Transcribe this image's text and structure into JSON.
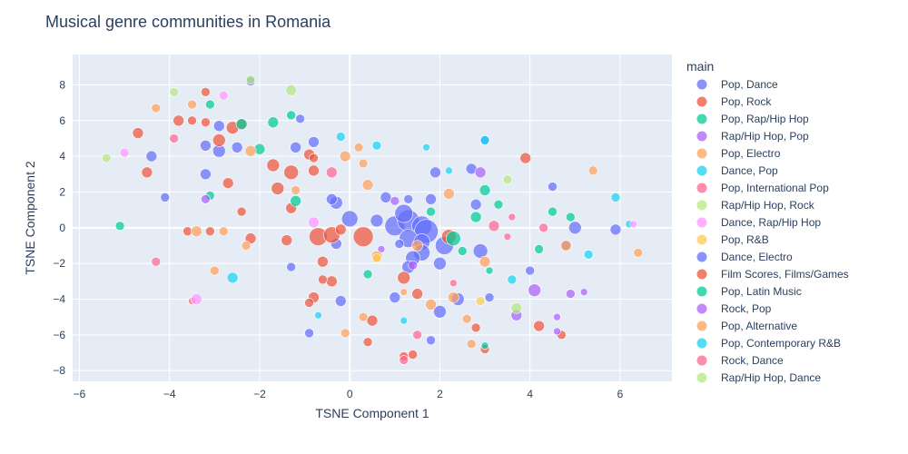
{
  "chart_data": {
    "type": "scatter",
    "title": "Musical genre communities in Romania",
    "xlabel": "TSNE Component 1",
    "ylabel": "TSNE Component 2",
    "xlim": [
      -6.15,
      7.15
    ],
    "ylim": [
      -8.6,
      9.7
    ],
    "xticks": [
      -6,
      -4,
      -2,
      0,
      2,
      4,
      6
    ],
    "yticks": [
      -8,
      -6,
      -4,
      -2,
      0,
      2,
      4,
      6,
      8
    ],
    "grid": true,
    "legend_title": "main",
    "legend_position": "right",
    "series": [
      {
        "name": "Pop, Dance",
        "color": "#636efa",
        "points": [
          [
            -2.9,
            5.7,
            6
          ],
          [
            -3.2,
            4.6,
            6
          ],
          [
            -2.9,
            4.3,
            7
          ],
          [
            -2.5,
            4.5,
            6
          ],
          [
            -1.2,
            4.5,
            6
          ],
          [
            -0.8,
            4.8,
            6
          ],
          [
            -3.2,
            3.0,
            6
          ],
          [
            -4.4,
            4.0,
            6
          ],
          [
            -4.1,
            1.7,
            5
          ],
          [
            -0.3,
            1.4,
            7
          ],
          [
            -0.4,
            1.6,
            6
          ],
          [
            0.8,
            1.7,
            6
          ],
          [
            0.0,
            0.5,
            9
          ],
          [
            0.6,
            0.4,
            7
          ],
          [
            1.0,
            0.1,
            11
          ],
          [
            1.3,
            0.4,
            12
          ],
          [
            1.2,
            0.8,
            10
          ],
          [
            1.6,
            0.1,
            11
          ],
          [
            1.7,
            -0.2,
            13
          ],
          [
            1.3,
            -0.6,
            10
          ],
          [
            1.6,
            -0.8,
            9
          ],
          [
            1.6,
            -1.4,
            9
          ],
          [
            2.1,
            -1.0,
            10
          ],
          [
            1.4,
            -1.7,
            8
          ],
          [
            2.0,
            -2.0,
            7
          ],
          [
            1.8,
            1.6,
            6
          ],
          [
            1.9,
            3.1,
            6
          ],
          [
            2.7,
            3.3,
            6
          ],
          [
            2.8,
            1.3,
            6
          ],
          [
            2.9,
            -1.3,
            8
          ],
          [
            2.4,
            -4.0,
            7
          ],
          [
            2.0,
            -4.7,
            7
          ],
          [
            1.3,
            -2.2,
            7
          ],
          [
            1.0,
            -3.9,
            6
          ],
          [
            -0.2,
            -4.1,
            6
          ],
          [
            -0.3,
            -0.9,
            6
          ],
          [
            -1.3,
            -2.2,
            5
          ],
          [
            3.0,
            4.9,
            5
          ],
          [
            4.5,
            2.3,
            5
          ],
          [
            4.0,
            -2.4,
            5
          ],
          [
            4.8,
            -1.0,
            5
          ],
          [
            5.0,
            0.0,
            7
          ],
          [
            5.9,
            -0.1,
            6
          ],
          [
            -1.1,
            6.1,
            5
          ],
          [
            -2.2,
            8.2,
            5
          ],
          [
            1.3,
            1.6,
            5
          ],
          [
            1.8,
            -6.3,
            5
          ],
          [
            -0.9,
            -5.9,
            5
          ],
          [
            3.1,
            -3.9,
            5
          ],
          [
            1.1,
            -0.9,
            5
          ]
        ]
      },
      {
        "name": "Pop, Rock",
        "color": "#ef553b",
        "points": [
          [
            -3.8,
            6.0,
            6
          ],
          [
            -4.7,
            5.3,
            6
          ],
          [
            -3.5,
            6.0,
            5
          ],
          [
            -2.9,
            4.9,
            7
          ],
          [
            -2.6,
            5.6,
            7
          ],
          [
            -2.4,
            5.8,
            6
          ],
          [
            -3.2,
            7.6,
            5
          ],
          [
            -1.7,
            3.5,
            7
          ],
          [
            -1.3,
            3.1,
            8
          ],
          [
            -1.6,
            2.2,
            7
          ],
          [
            -0.9,
            4.1,
            6
          ],
          [
            -0.8,
            3.9,
            5
          ],
          [
            -0.8,
            3.2,
            6
          ],
          [
            -1.3,
            1.1,
            6
          ],
          [
            -2.7,
            2.5,
            6
          ],
          [
            -4.5,
            3.1,
            6
          ],
          [
            -2.2,
            -0.6,
            6
          ],
          [
            -1.4,
            -0.7,
            6
          ],
          [
            -0.7,
            -0.5,
            10
          ],
          [
            -0.4,
            -0.4,
            9
          ],
          [
            -0.2,
            -0.1,
            6
          ],
          [
            0.3,
            -0.5,
            11
          ],
          [
            -0.6,
            -1.9,
            6
          ],
          [
            -0.4,
            -3.0,
            6
          ],
          [
            -0.8,
            -3.9,
            6
          ],
          [
            -0.9,
            -4.2,
            5
          ],
          [
            -0.6,
            -2.9,
            5
          ],
          [
            0.5,
            -5.2,
            6
          ],
          [
            0.4,
            -6.4,
            5
          ],
          [
            1.2,
            -2.8,
            7
          ],
          [
            1.5,
            -3.7,
            6
          ],
          [
            1.2,
            -7.2,
            5
          ],
          [
            1.4,
            -7.1,
            5
          ],
          [
            3.0,
            -6.8,
            5
          ],
          [
            3.9,
            3.9,
            6
          ],
          [
            4.2,
            -5.5,
            6
          ],
          [
            4.7,
            -6.0,
            5
          ],
          [
            -3.1,
            -0.2,
            5
          ],
          [
            -3.6,
            -0.2,
            5
          ],
          [
            -2.4,
            0.9,
            5
          ],
          [
            -3.2,
            5.9,
            5
          ],
          [
            2.8,
            -5.6,
            5
          ],
          [
            2.2,
            -0.5,
            8
          ]
        ]
      },
      {
        "name": "Pop, Rap/Hip Hop",
        "color": "#00cc96",
        "points": [
          [
            -3.1,
            6.9,
            5
          ],
          [
            -1.3,
            6.3,
            5
          ],
          [
            -1.7,
            5.9,
            6
          ],
          [
            -2.4,
            5.8,
            6
          ],
          [
            -2.0,
            4.4,
            6
          ],
          [
            -3.1,
            1.8,
            5
          ],
          [
            -1.2,
            1.5,
            6
          ],
          [
            0.4,
            -2.6,
            5
          ],
          [
            2.3,
            -0.6,
            8
          ],
          [
            1.8,
            0.9,
            5
          ],
          [
            2.8,
            0.6,
            6
          ],
          [
            3.0,
            2.1,
            6
          ],
          [
            3.3,
            1.3,
            5
          ],
          [
            2.5,
            -1.3,
            5
          ],
          [
            4.2,
            -1.2,
            5
          ],
          [
            4.9,
            0.6,
            5
          ],
          [
            4.5,
            0.9,
            5
          ],
          [
            3.1,
            -2.4,
            4
          ],
          [
            3.0,
            -6.6,
            4
          ],
          [
            -5.1,
            0.1,
            5
          ]
        ]
      },
      {
        "name": "Rap/Hip Hop, Pop",
        "color": "#ab63fa",
        "points": [
          [
            -3.2,
            1.6,
            5
          ],
          [
            1.0,
            1.5,
            5
          ],
          [
            0.7,
            -1.2,
            4
          ],
          [
            2.9,
            3.1,
            6
          ],
          [
            4.1,
            -3.5,
            7
          ],
          [
            3.7,
            -4.9,
            6
          ],
          [
            4.9,
            -3.7,
            5
          ],
          [
            5.2,
            -3.6,
            4
          ],
          [
            4.6,
            -5.0,
            4
          ],
          [
            4.6,
            -5.8,
            4
          ],
          [
            1.4,
            -2.1,
            5
          ]
        ]
      },
      {
        "name": "Pop, Electro",
        "color": "#ffa15a",
        "points": [
          [
            -4.3,
            6.7,
            5
          ],
          [
            -3.5,
            6.9,
            5
          ],
          [
            -2.2,
            4.3,
            6
          ],
          [
            -1.2,
            2.1,
            5
          ],
          [
            -0.1,
            4.0,
            6
          ],
          [
            0.2,
            4.5,
            5
          ],
          [
            0.3,
            3.6,
            5
          ],
          [
            0.4,
            2.4,
            6
          ],
          [
            -3.4,
            -0.2,
            6
          ],
          [
            -2.8,
            -0.2,
            5
          ],
          [
            -2.3,
            -1.0,
            5
          ],
          [
            -3.0,
            -2.4,
            5
          ],
          [
            0.6,
            -1.6,
            6
          ],
          [
            1.5,
            -1.0,
            6
          ],
          [
            1.8,
            -4.3,
            6
          ],
          [
            2.3,
            -3.9,
            6
          ],
          [
            2.6,
            -5.1,
            5
          ],
          [
            2.7,
            -6.5,
            5
          ],
          [
            3.0,
            -1.9,
            6
          ],
          [
            4.8,
            -1.0,
            6
          ],
          [
            5.4,
            3.2,
            5
          ],
          [
            6.4,
            -1.4,
            5
          ],
          [
            -0.1,
            -5.9,
            5
          ],
          [
            0.3,
            -5.0,
            5
          ],
          [
            1.2,
            -3.6,
            4
          ],
          [
            2.2,
            1.9,
            6
          ]
        ]
      },
      {
        "name": "Dance, Pop",
        "color": "#19d3f3",
        "points": [
          [
            -0.2,
            5.1,
            5
          ],
          [
            0.6,
            4.6,
            5
          ],
          [
            1.7,
            4.5,
            4
          ],
          [
            2.2,
            3.2,
            4
          ],
          [
            3.0,
            4.9,
            5
          ],
          [
            5.9,
            1.7,
            5
          ],
          [
            5.3,
            -1.5,
            5
          ],
          [
            3.6,
            -2.9,
            5
          ],
          [
            -2.6,
            -2.8,
            6
          ],
          [
            -0.7,
            -4.9,
            4
          ],
          [
            1.2,
            -5.2,
            4
          ],
          [
            6.2,
            0.2,
            4
          ]
        ]
      },
      {
        "name": "Pop, International Pop",
        "color": "#ff6692",
        "points": [
          [
            -3.9,
            5.0,
            5
          ],
          [
            -0.4,
            3.1,
            6
          ],
          [
            1.5,
            -6.0,
            5
          ],
          [
            1.2,
            -7.4,
            5
          ],
          [
            2.3,
            -3.1,
            4
          ],
          [
            3.2,
            0.1,
            6
          ],
          [
            3.6,
            0.6,
            4
          ],
          [
            3.5,
            -0.5,
            4
          ],
          [
            4.3,
            0.0,
            5
          ],
          [
            -4.3,
            -1.9,
            5
          ],
          [
            -3.5,
            -4.1,
            4
          ]
        ]
      },
      {
        "name": "Rap/Hip Hop, Rock",
        "color": "#b6e880",
        "points": [
          [
            -5.4,
            3.9,
            5
          ],
          [
            -3.9,
            7.6,
            5
          ],
          [
            -1.3,
            7.7,
            6
          ],
          [
            -2.2,
            8.3,
            5
          ],
          [
            3.5,
            2.7,
            5
          ],
          [
            3.7,
            -4.5,
            6
          ]
        ]
      },
      {
        "name": "Dance, Rap/Hip Hop",
        "color": "#ff97ff",
        "points": [
          [
            -5.0,
            4.2,
            5
          ],
          [
            -2.8,
            7.4,
            5
          ],
          [
            -0.8,
            0.3,
            6
          ],
          [
            -3.4,
            -4.0,
            6
          ],
          [
            6.3,
            0.2,
            4
          ]
        ]
      },
      {
        "name": "Pop, R&B",
        "color": "#fecb52",
        "points": [
          [
            0.6,
            -1.7,
            5
          ],
          [
            2.9,
            -4.1,
            5
          ]
        ]
      }
    ]
  },
  "legend_entries": [
    {
      "name": "Pop, Dance",
      "color": "#636efa"
    },
    {
      "name": "Pop, Rock",
      "color": "#ef553b"
    },
    {
      "name": "Pop, Rap/Hip Hop",
      "color": "#00cc96"
    },
    {
      "name": "Rap/Hip Hop, Pop",
      "color": "#ab63fa"
    },
    {
      "name": "Pop, Electro",
      "color": "#ffa15a"
    },
    {
      "name": "Dance, Pop",
      "color": "#19d3f3"
    },
    {
      "name": "Pop, International Pop",
      "color": "#ff6692"
    },
    {
      "name": "Rap/Hip Hop, Rock",
      "color": "#b6e880"
    },
    {
      "name": "Dance, Rap/Hip Hop",
      "color": "#ff97ff"
    },
    {
      "name": "Pop, R&B",
      "color": "#fecb52"
    },
    {
      "name": "Dance, Electro",
      "color": "#636efa"
    },
    {
      "name": "Film Scores, Films/Games",
      "color": "#ef553b"
    },
    {
      "name": "Pop, Latin Music",
      "color": "#00cc96"
    },
    {
      "name": "Rock, Pop",
      "color": "#ab63fa"
    },
    {
      "name": "Pop, Alternative",
      "color": "#ffa15a"
    },
    {
      "name": "Pop, Contemporary R&B",
      "color": "#19d3f3"
    },
    {
      "name": "Rock, Dance",
      "color": "#ff6692"
    },
    {
      "name": "Rap/Hip Hop, Dance",
      "color": "#b6e880"
    }
  ]
}
